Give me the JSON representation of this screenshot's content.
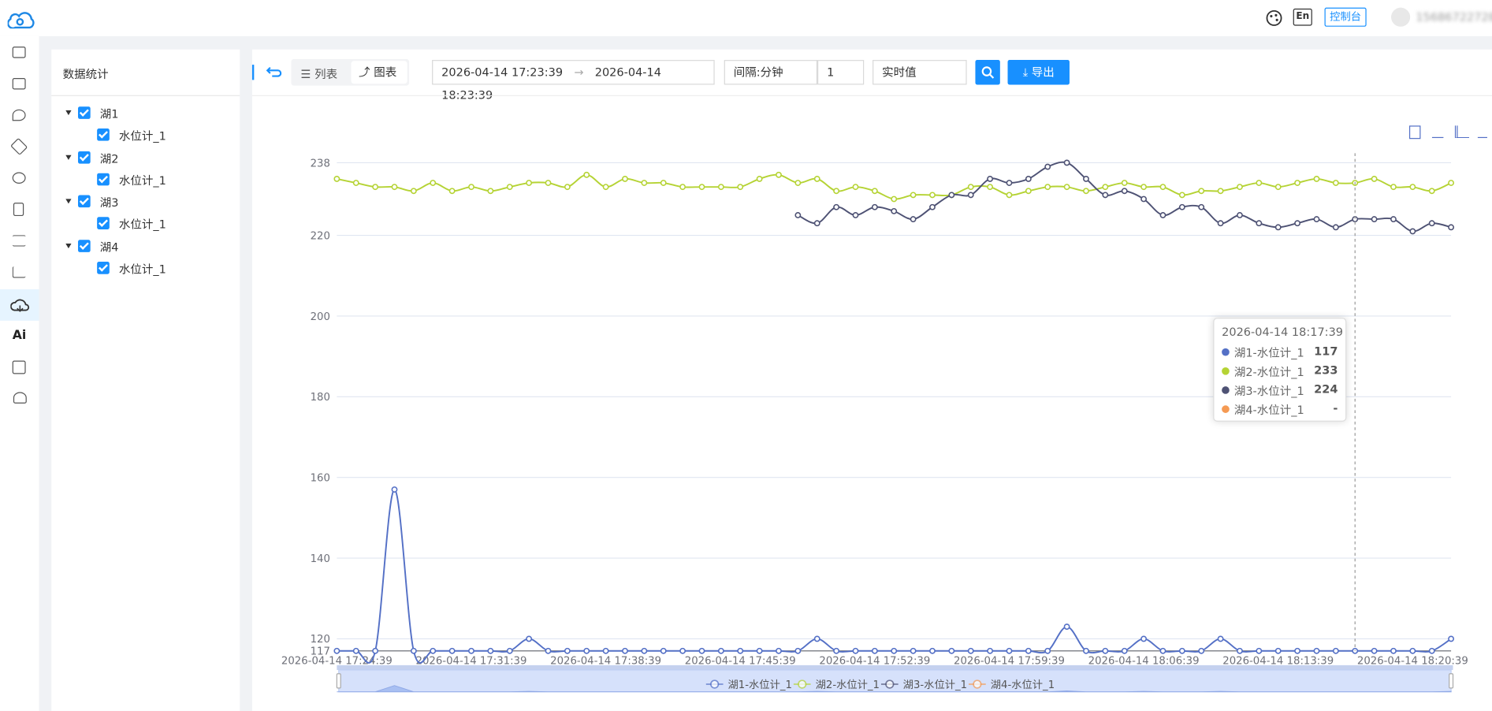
{
  "header": {
    "lang_button": "En",
    "console_button": "控制台",
    "user": "15686722728"
  },
  "sidebar": {
    "ai_label": "Ai"
  },
  "tree": {
    "title": "数据统计",
    "nodes": [
      {
        "label": "湖1",
        "children": [
          "水位计_1"
        ]
      },
      {
        "label": "湖2",
        "children": [
          "水位计_1"
        ]
      },
      {
        "label": "湖3",
        "children": [
          "水位计_1"
        ]
      },
      {
        "label": "湖4",
        "children": [
          "水位计_1"
        ]
      }
    ]
  },
  "toolbar": {
    "list_tab": "列表",
    "chart_tab": "图表",
    "start_time": "2026-04-14 17:23:39",
    "end_time": "2026-04-14 18:23:39",
    "interval": "间隔:分钟",
    "interval_value": "1",
    "value_type": "实时值",
    "export_button": "导出"
  },
  "chart_data": {
    "type": "line",
    "categories": [
      "2026-04-14 17:24:39",
      null,
      null,
      null,
      null,
      null,
      null,
      "2026-04-14 17:31:39",
      null,
      null,
      null,
      null,
      null,
      null,
      "2026-04-14 17:38:39",
      null,
      null,
      null,
      null,
      null,
      null,
      "2026-04-14 17:45:39",
      null,
      null,
      null,
      null,
      null,
      null,
      "2026-04-14 17:52:39",
      null,
      null,
      null,
      null,
      null,
      null,
      "2026-04-14 17:59:39",
      null,
      null,
      null,
      null,
      null,
      null,
      "2026-04-14 18:06:39",
      null,
      null,
      null,
      null,
      null,
      null,
      "2026-04-14 18:13:39",
      null,
      null,
      null,
      null,
      null,
      null,
      "2026-04-14 18:20:39",
      null,
      null
    ],
    "series": [
      {
        "name": "湖1-水位计_1",
        "color": "#5470c6",
        "values": [
          117,
          117,
          117,
          157,
          117,
          117,
          117,
          117,
          117,
          117,
          120,
          117,
          117,
          117,
          117,
          117,
          117,
          117,
          117,
          117,
          117,
          117,
          117,
          117,
          117,
          120,
          117,
          117,
          117,
          117,
          117,
          117,
          117,
          117,
          117,
          117,
          117,
          117,
          123,
          117,
          117,
          117,
          120,
          117,
          117,
          117,
          120,
          117,
          117,
          117,
          117,
          117,
          117,
          117,
          117,
          117,
          117,
          117,
          120
        ]
      },
      {
        "name": "湖2-水位计_1",
        "color": "#b5d334",
        "values": [
          234,
          233,
          232,
          232,
          231,
          233,
          231,
          232,
          231,
          232,
          233,
          233,
          232,
          235,
          232,
          234,
          233,
          233,
          232,
          232,
          232,
          232,
          234,
          235,
          233,
          234,
          231,
          232,
          231,
          229,
          230,
          230,
          230,
          232,
          232,
          230,
          231,
          232,
          232,
          231,
          232,
          233,
          232,
          232,
          230,
          231,
          231,
          232,
          233,
          232,
          233,
          234,
          233,
          233,
          234,
          232,
          232,
          231,
          233
        ]
      },
      {
        "name": "湖3-水位计_1",
        "color": "#4e5274",
        "values": [
          null,
          null,
          null,
          null,
          null,
          null,
          null,
          null,
          null,
          null,
          null,
          null,
          null,
          null,
          null,
          null,
          null,
          null,
          null,
          null,
          null,
          null,
          null,
          null,
          225,
          223,
          227,
          225,
          227,
          226,
          224,
          227,
          230,
          230,
          234,
          233,
          234,
          237,
          238,
          234,
          230,
          231,
          229,
          225,
          227,
          227,
          223,
          225,
          223,
          222,
          223,
          224,
          222,
          224,
          224,
          224,
          221,
          223,
          222
        ]
      },
      {
        "name": "湖4-水位计_1",
        "color": "#f59a53",
        "values": [
          null,
          null,
          null,
          null,
          null,
          null,
          null,
          null,
          null,
          null,
          null,
          null,
          null,
          null,
          null,
          null,
          null,
          null,
          null,
          null,
          null,
          null,
          null,
          null,
          null,
          null,
          null,
          null,
          null,
          null,
          null,
          null,
          null,
          null,
          null,
          null,
          null,
          null,
          null,
          null,
          null,
          null,
          null,
          null,
          null,
          null,
          null,
          null,
          null,
          null,
          null,
          null,
          null,
          null,
          null,
          null,
          null,
          null,
          null
        ]
      }
    ],
    "ylim": [
      117,
      238
    ],
    "yticks": [
      117,
      120,
      140,
      160,
      180,
      200,
      220,
      238
    ],
    "grid": true
  },
  "tooltip": {
    "title": "2026-04-14 18:17:39",
    "empty_value": "-"
  }
}
